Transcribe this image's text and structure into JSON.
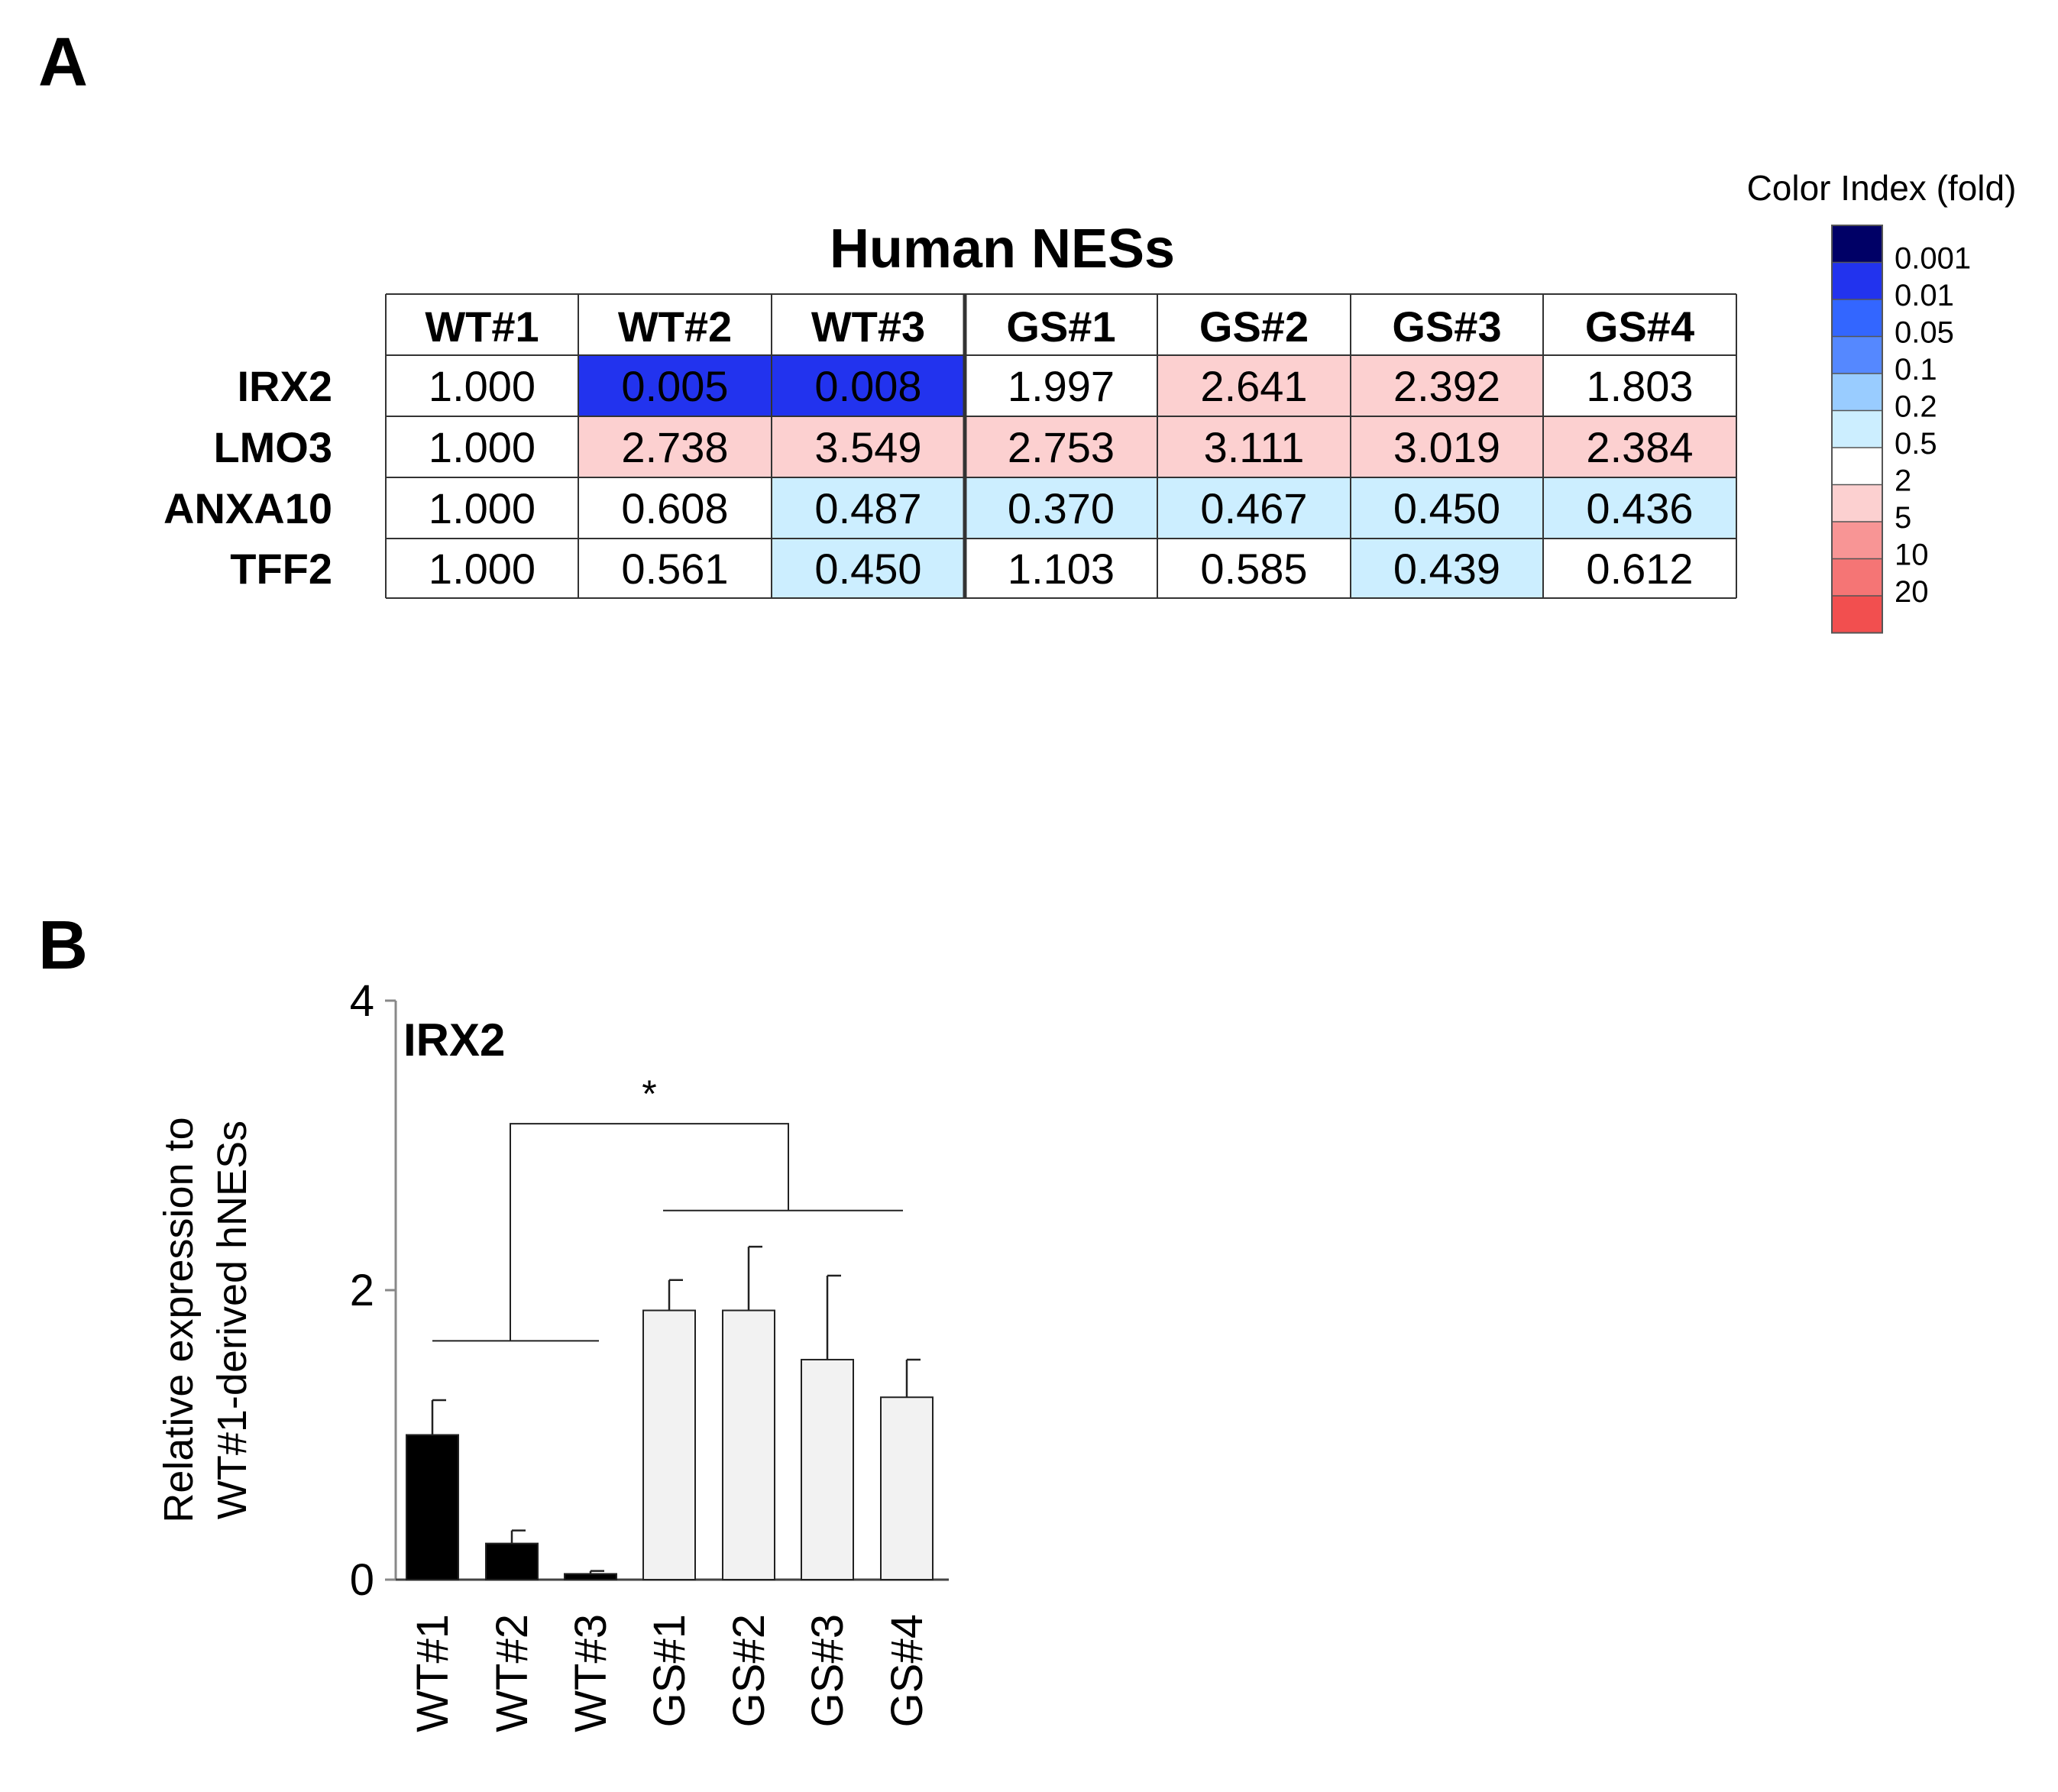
{
  "panel_a": {
    "label": "A",
    "title": "Human NESs",
    "columns": [
      "WT#1",
      "WT#2",
      "WT#3",
      "GS#1",
      "GS#2",
      "GS#3",
      "GS#4"
    ],
    "rows": [
      {
        "gene": "IRX2",
        "values": [
          "1.000",
          "0.005",
          "0.008",
          "1.997",
          "2.641",
          "2.392",
          "1.803"
        ]
      },
      {
        "gene": "LMO3",
        "values": [
          "1.000",
          "2.738",
          "3.549",
          "2.753",
          "3.111",
          "3.019",
          "2.384"
        ]
      },
      {
        "gene": "ANXA10",
        "values": [
          "1.000",
          "0.608",
          "0.487",
          "0.370",
          "0.467",
          "0.450",
          "0.436"
        ]
      },
      {
        "gene": "TFF2",
        "values": [
          "1.000",
          "0.561",
          "0.450",
          "1.103",
          "0.585",
          "0.439",
          "0.612"
        ]
      }
    ],
    "color_index": {
      "title": "Color Index (fold)",
      "labels": [
        "0.001",
        "0.01",
        "0.05",
        "0.1",
        "0.2",
        "0.5",
        "2",
        "5",
        "10",
        "20"
      ],
      "swatches": [
        "#000066",
        "#2233ee",
        "#3366ff",
        "#5588ff",
        "#99ccff",
        "#cceeff",
        "#ffffff",
        "#fcd0d0",
        "#f89595",
        "#f57575",
        "#f24f4f"
      ]
    }
  },
  "chart_data": [
    {
      "type": "heatmap",
      "title": "Human NESs",
      "x": [
        "WT#1",
        "WT#2",
        "WT#3",
        "GS#1",
        "GS#2",
        "GS#3",
        "GS#4"
      ],
      "y": [
        "IRX2",
        "LMO3",
        "ANXA10",
        "TFF2"
      ],
      "values": [
        [
          1.0,
          0.005,
          0.008,
          1.997,
          2.641,
          2.392,
          1.803
        ],
        [
          1.0,
          2.738,
          3.549,
          2.753,
          3.111,
          3.019,
          2.384
        ],
        [
          1.0,
          0.608,
          0.487,
          0.37,
          0.467,
          0.45,
          0.436
        ],
        [
          1.0,
          0.561,
          0.45,
          1.103,
          0.585,
          0.439,
          0.612
        ]
      ],
      "colorbar_label": "Color Index (fold)"
    },
    {
      "type": "bar",
      "panel_label": "B",
      "title": "IRX2",
      "categories": [
        "WT#1",
        "WT#2",
        "WT#3",
        "GS#1",
        "GS#2",
        "GS#3",
        "GS#4"
      ],
      "values": [
        1.0,
        0.25,
        0.04,
        1.86,
        1.86,
        1.52,
        1.26
      ],
      "errors": [
        0.24,
        0.09,
        0.02,
        0.21,
        0.44,
        0.58,
        0.26
      ],
      "bar_colors": [
        "#000000",
        "#000000",
        "#000000",
        "#f2f2f2",
        "#f2f2f2",
        "#f2f2f2",
        "#f2f2f2"
      ],
      "ylabel_line1": "Relative expression to",
      "ylabel_line2": "WT#1-derived hNESs",
      "ylim": [
        0,
        4
      ],
      "yticks": [
        "0",
        "2",
        "4"
      ],
      "significance": "*",
      "bracket_group_level": 1.65,
      "bracket_top_level": 3.15,
      "gs_group_level": 2.55
    }
  ]
}
